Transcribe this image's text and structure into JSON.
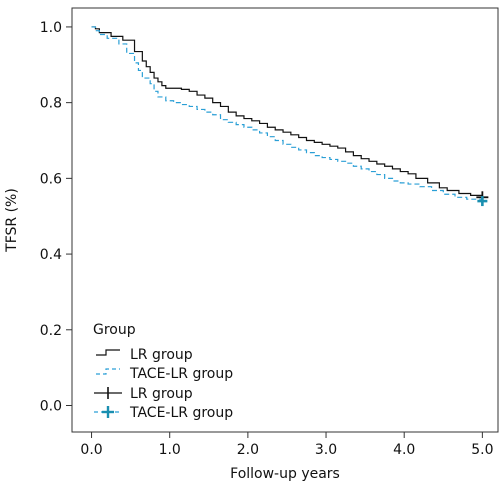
{
  "chart_data": {
    "type": "line",
    "xlabel": "Follow-up years",
    "ylabel": "TFSR (%)",
    "xlim": [
      -0.25,
      5.2
    ],
    "ylim": [
      -0.07,
      1.05
    ],
    "x_ticks": [
      0.0,
      1.0,
      2.0,
      3.0,
      4.0,
      5.0
    ],
    "x_tick_labels": [
      "0.0",
      "1.0",
      "2.0",
      "3.0",
      "4.0",
      "5.0"
    ],
    "y_ticks": [
      0.0,
      0.2,
      0.4,
      0.6,
      0.8,
      1.0
    ],
    "y_tick_labels": [
      "0.0",
      "0.2",
      "0.4",
      "0.6",
      "0.8",
      "1.0"
    ],
    "step": true,
    "legend": {
      "title": "Group",
      "position": "bottom-left",
      "entries": [
        {
          "label": "LR group",
          "symbol": "step",
          "color": "#111111",
          "dash": false
        },
        {
          "label": "TACE-LR group",
          "symbol": "step",
          "color": "#2a9fd6",
          "dash": true
        },
        {
          "label": "LR group",
          "symbol": "censor",
          "color": "#111111"
        },
        {
          "label": "TACE-LR group",
          "symbol": "censor",
          "color": "#1a8fb0"
        }
      ]
    },
    "series": [
      {
        "name": "LR group",
        "color": "#111111",
        "dash": false,
        "censor_color": "#111111",
        "x": [
          0,
          0.05,
          0.1,
          0.25,
          0.4,
          0.55,
          0.65,
          0.7,
          0.75,
          0.8,
          0.85,
          0.9,
          0.95,
          1.15,
          1.25,
          1.35,
          1.45,
          1.55,
          1.65,
          1.75,
          1.85,
          1.95,
          2.05,
          2.15,
          2.25,
          2.35,
          2.45,
          2.55,
          2.65,
          2.75,
          2.85,
          2.95,
          3.05,
          3.15,
          3.25,
          3.35,
          3.45,
          3.55,
          3.65,
          3.75,
          3.85,
          3.95,
          4.05,
          4.15,
          4.3,
          4.45,
          4.55,
          4.7,
          4.85,
          5.0
        ],
        "y": [
          1.0,
          0.995,
          0.985,
          0.975,
          0.965,
          0.935,
          0.91,
          0.895,
          0.88,
          0.865,
          0.855,
          0.845,
          0.838,
          0.835,
          0.83,
          0.82,
          0.812,
          0.8,
          0.79,
          0.775,
          0.765,
          0.758,
          0.752,
          0.745,
          0.735,
          0.728,
          0.722,
          0.715,
          0.708,
          0.7,
          0.695,
          0.69,
          0.685,
          0.68,
          0.67,
          0.66,
          0.652,
          0.645,
          0.638,
          0.632,
          0.625,
          0.618,
          0.612,
          0.6,
          0.588,
          0.575,
          0.568,
          0.56,
          0.555,
          0.55
        ]
      },
      {
        "name": "TACE-LR group",
        "color": "#2a9fd6",
        "dash": true,
        "censor_color": "#1a8fb0",
        "x": [
          0,
          0.05,
          0.1,
          0.2,
          0.35,
          0.45,
          0.55,
          0.6,
          0.65,
          0.75,
          0.8,
          0.85,
          0.95,
          1.05,
          1.15,
          1.25,
          1.35,
          1.45,
          1.55,
          1.65,
          1.75,
          1.85,
          1.95,
          2.05,
          2.15,
          2.25,
          2.35,
          2.45,
          2.55,
          2.65,
          2.75,
          2.85,
          2.95,
          3.05,
          3.15,
          3.25,
          3.35,
          3.45,
          3.55,
          3.65,
          3.75,
          3.85,
          3.95,
          4.05,
          4.2,
          4.35,
          4.5,
          4.65,
          4.8,
          5.0
        ],
        "y": [
          1.0,
          0.99,
          0.98,
          0.97,
          0.955,
          0.93,
          0.905,
          0.885,
          0.865,
          0.85,
          0.83,
          0.815,
          0.805,
          0.8,
          0.795,
          0.79,
          0.782,
          0.775,
          0.768,
          0.755,
          0.748,
          0.742,
          0.735,
          0.728,
          0.72,
          0.71,
          0.7,
          0.69,
          0.682,
          0.675,
          0.668,
          0.66,
          0.655,
          0.65,
          0.645,
          0.64,
          0.632,
          0.625,
          0.618,
          0.61,
          0.6,
          0.593,
          0.588,
          0.585,
          0.578,
          0.568,
          0.558,
          0.55,
          0.545,
          0.54
        ]
      }
    ]
  }
}
